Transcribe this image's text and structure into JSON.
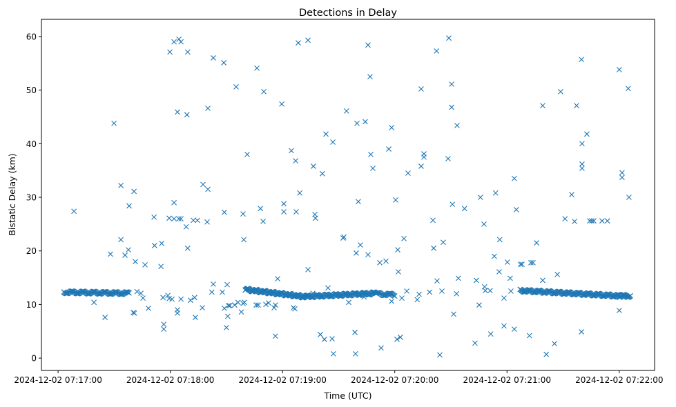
{
  "chart_data": {
    "type": "scatter",
    "title": "Detections in Delay",
    "xlabel": "Time (UTC)",
    "ylabel": "Bistatic Delay (km)",
    "x_units": "seconds after 2024-12-02 07:17:00",
    "xlim": [
      -8.9,
      318.9
    ],
    "ylim": [
      -2.3,
      63.2
    ],
    "x_ticks": [
      0,
      60,
      120,
      180,
      240,
      300
    ],
    "x_tick_labels": [
      "2024-12-02 07:17:00",
      "2024-12-02 07:18:00",
      "2024-12-02 07:19:00",
      "2024-12-02 07:20:00",
      "2024-12-02 07:21:00",
      "2024-12-02 07:22:00"
    ],
    "y_ticks": [
      0,
      10,
      20,
      30,
      40,
      50,
      60
    ],
    "y_tick_labels": [
      "0",
      "10",
      "20",
      "30",
      "40",
      "50",
      "60"
    ],
    "marker": "x",
    "color": "#1f77b4",
    "grid": false,
    "dense_tracks": [
      {
        "t_start": 3,
        "t_end": 38,
        "y_start": 12.3,
        "y_end": 12.1,
        "count": 90
      },
      {
        "t_start": 100,
        "t_end": 133,
        "y_start": 12.8,
        "y_end": 11.4,
        "count": 110
      },
      {
        "t_start": 133,
        "t_end": 170,
        "y_start": 11.5,
        "y_end": 12.1,
        "count": 110
      },
      {
        "t_start": 170,
        "t_end": 180,
        "y_start": 12.0,
        "y_end": 11.8,
        "count": 25
      },
      {
        "t_start": 247,
        "t_end": 300,
        "y_start": 12.6,
        "y_end": 11.6,
        "count": 150
      },
      {
        "t_start": 300,
        "t_end": 306,
        "y_start": 11.6,
        "y_end": 11.6,
        "count": 20
      }
    ],
    "points": [
      [
        8.5,
        27.4
      ],
      [
        29.9,
        43.8
      ],
      [
        33.6,
        32.2
      ],
      [
        33.6,
        22.1
      ],
      [
        38,
        28.4
      ],
      [
        40.6,
        31.1
      ],
      [
        35.8,
        19.2
      ],
      [
        28,
        19.4
      ],
      [
        25.1,
        7.6
      ],
      [
        37.6,
        20.2
      ],
      [
        41.3,
        18
      ],
      [
        40.2,
        8.5
      ],
      [
        40.8,
        8.4
      ],
      [
        46.5,
        17.4
      ],
      [
        48.3,
        9.3
      ],
      [
        51.3,
        26.3
      ],
      [
        51.6,
        21
      ],
      [
        55.4,
        21.4
      ],
      [
        55,
        17.1
      ],
      [
        56.5,
        6.3
      ],
      [
        56.5,
        5.4
      ],
      [
        59.8,
        57.1
      ],
      [
        62,
        59
      ],
      [
        64.6,
        59.5
      ],
      [
        65.7,
        59
      ],
      [
        63.8,
        45.9
      ],
      [
        68.9,
        45.4
      ],
      [
        69.3,
        57.1
      ],
      [
        62,
        29
      ],
      [
        59.4,
        26.1
      ],
      [
        62,
        26
      ],
      [
        64.6,
        26
      ],
      [
        65.7,
        26
      ],
      [
        68.5,
        24.5
      ],
      [
        69.3,
        20.5
      ],
      [
        63.8,
        9
      ],
      [
        63.8,
        8.4
      ],
      [
        65.7,
        11
      ],
      [
        70.8,
        10.8
      ],
      [
        73.4,
        7.6
      ],
      [
        77.1,
        9.4
      ],
      [
        77.5,
        32.4
      ],
      [
        80.1,
        31.5
      ],
      [
        79.7,
        25.4
      ],
      [
        74.5,
        25.7
      ],
      [
        72.3,
        25.7
      ],
      [
        80.1,
        46.6
      ],
      [
        83,
        56
      ],
      [
        88.6,
        55.1
      ],
      [
        88.9,
        27.2
      ],
      [
        95.2,
        50.6
      ],
      [
        99.3,
        22.1
      ],
      [
        98.9,
        26.9
      ],
      [
        101.1,
        38
      ],
      [
        106.3,
        54.1
      ],
      [
        110,
        49.7
      ],
      [
        108.2,
        27.9
      ],
      [
        109.6,
        25.5
      ],
      [
        116.2,
        4.1
      ],
      [
        117.4,
        14.8
      ],
      [
        119.6,
        47.4
      ],
      [
        120.7,
        28.8
      ],
      [
        120.7,
        27.3
      ],
      [
        124.7,
        38.7
      ],
      [
        127,
        36.8
      ],
      [
        127.3,
        27.3
      ],
      [
        129.2,
        30.8
      ],
      [
        128.4,
        58.8
      ],
      [
        133.6,
        59.3
      ],
      [
        133.6,
        16.5
      ],
      [
        136.5,
        35.8
      ],
      [
        137.3,
        26.8
      ],
      [
        137.6,
        26.1
      ],
      [
        141.3,
        34.4
      ],
      [
        143.2,
        41.8
      ],
      [
        146.9,
        40.3
      ],
      [
        140.2,
        4.4
      ],
      [
        142.4,
        3.5
      ],
      [
        147.2,
        0.8
      ],
      [
        146.5,
        3.6
      ],
      [
        152.4,
        22.4
      ],
      [
        152.8,
        22.6
      ],
      [
        154.2,
        46.1
      ],
      [
        158.7,
        4.8
      ],
      [
        159,
        0.8
      ],
      [
        159.8,
        43.8
      ],
      [
        160.5,
        29.2
      ],
      [
        159.4,
        19.6
      ],
      [
        161.6,
        21.1
      ],
      [
        164.2,
        44.1
      ],
      [
        165.7,
        58.4
      ],
      [
        166.8,
        52.5
      ],
      [
        167.2,
        38
      ],
      [
        168.3,
        35.4
      ],
      [
        165.7,
        19.3
      ],
      [
        172,
        17.8
      ],
      [
        172.7,
        1.9
      ],
      [
        175.3,
        18.1
      ],
      [
        176.8,
        39
      ],
      [
        178.3,
        43
      ],
      [
        180.5,
        29.5
      ],
      [
        181.6,
        20.2
      ],
      [
        181.9,
        16.1
      ],
      [
        181.2,
        3.5
      ],
      [
        183,
        3.9
      ],
      [
        184.9,
        22.3
      ],
      [
        187.1,
        34.5
      ],
      [
        194.1,
        50.2
      ],
      [
        194.1,
        35.8
      ],
      [
        195.6,
        38.1
      ],
      [
        195.6,
        37.5
      ],
      [
        200.4,
        25.7
      ],
      [
        200.8,
        20.5
      ],
      [
        202.3,
        57.3
      ],
      [
        202.6,
        14.4
      ],
      [
        204.1,
        0.6
      ],
      [
        205.9,
        21.6
      ],
      [
        208.5,
        37.2
      ],
      [
        208.9,
        59.7
      ],
      [
        210.4,
        51.1
      ],
      [
        210.4,
        46.8
      ],
      [
        210.8,
        28.7
      ],
      [
        211.5,
        8.2
      ],
      [
        213.3,
        43.4
      ],
      [
        214,
        14.9
      ],
      [
        217.3,
        27.9
      ],
      [
        222.9,
        2.8
      ],
      [
        223.6,
        14.5
      ],
      [
        225.1,
        9.9
      ],
      [
        225.8,
        30
      ],
      [
        227.7,
        25
      ],
      [
        228,
        13.3
      ],
      [
        228.4,
        12.6
      ],
      [
        231.3,
        4.5
      ],
      [
        233.2,
        19
      ],
      [
        233.9,
        30.8
      ],
      [
        236.1,
        22.1
      ],
      [
        235.8,
        16.1
      ],
      [
        238.4,
        11.2
      ],
      [
        238.4,
        6
      ],
      [
        240.2,
        17.9
      ],
      [
        241.7,
        14.9
      ],
      [
        242.1,
        12.5
      ],
      [
        243.9,
        5.4
      ],
      [
        243.9,
        33.5
      ],
      [
        245,
        27.7
      ],
      [
        247.2,
        17.5
      ],
      [
        248,
        17.5
      ],
      [
        252,
        4.2
      ],
      [
        252.8,
        17.8
      ],
      [
        253.9,
        17.8
      ],
      [
        255.8,
        21.5
      ],
      [
        259.1,
        14.5
      ],
      [
        259.1,
        47.1
      ],
      [
        261,
        0.7
      ],
      [
        265.4,
        2.7
      ],
      [
        266.9,
        15.6
      ],
      [
        268.7,
        49.7
      ],
      [
        271,
        26
      ],
      [
        274.6,
        30.5
      ],
      [
        276.1,
        25.5
      ],
      [
        277.2,
        47.1
      ],
      [
        279.8,
        55.7
      ],
      [
        280.1,
        40
      ],
      [
        280.1,
        36.2
      ],
      [
        280.1,
        35.4
      ],
      [
        279.8,
        4.9
      ],
      [
        282.7,
        41.8
      ],
      [
        284.2,
        25.6
      ],
      [
        285.3,
        25.6
      ],
      [
        286.4,
        25.6
      ],
      [
        290.8,
        25.6
      ],
      [
        293.7,
        25.6
      ],
      [
        300,
        53.8
      ],
      [
        301.5,
        34.6
      ],
      [
        301.5,
        33.7
      ],
      [
        304.8,
        50.3
      ],
      [
        305.2,
        30
      ],
      [
        300,
        8.9
      ],
      [
        19.2,
        10.4
      ],
      [
        42.2,
        12.4
      ],
      [
        44.3,
        12.1
      ],
      [
        45.4,
        11.2
      ],
      [
        56.1,
        11.3
      ],
      [
        58.7,
        11.7
      ],
      [
        59.4,
        11.1
      ],
      [
        60.9,
        11
      ],
      [
        73,
        11.3
      ],
      [
        82.2,
        12.3
      ],
      [
        83,
        13.8
      ],
      [
        87.8,
        12.3
      ],
      [
        88.9,
        9.3
      ],
      [
        90,
        5.7
      ],
      [
        90.4,
        13.7
      ],
      [
        90.7,
        7.8
      ],
      [
        91.1,
        9.8
      ],
      [
        91.8,
        9.8
      ],
      [
        94.4,
        9.9
      ],
      [
        96.2,
        10.4
      ],
      [
        98,
        8.6
      ],
      [
        98.9,
        10.2
      ],
      [
        99.6,
        10.4
      ],
      [
        105.9,
        9.9
      ],
      [
        107,
        9.9
      ],
      [
        111.1,
        10
      ],
      [
        112.5,
        10.3
      ],
      [
        115.5,
        9.4
      ],
      [
        116.2,
        9.9
      ],
      [
        125.8,
        9.4
      ],
      [
        126.6,
        9.2
      ],
      [
        136.2,
        12.1
      ],
      [
        144.3,
        13.1
      ],
      [
        150.2,
        11.9
      ],
      [
        155.4,
        10.4
      ],
      [
        161,
        12.1
      ],
      [
        163.6,
        11.4
      ],
      [
        170.3,
        12.1
      ],
      [
        178.3,
        10.6
      ],
      [
        183.8,
        11.2
      ],
      [
        186.4,
        12.5
      ],
      [
        192,
        10.9
      ],
      [
        193,
        11.9
      ],
      [
        198.6,
        12.3
      ],
      [
        205.2,
        12.5
      ],
      [
        213,
        12
      ],
      [
        231,
        12.6
      ],
      [
        247.9,
        12.6
      ]
    ]
  }
}
